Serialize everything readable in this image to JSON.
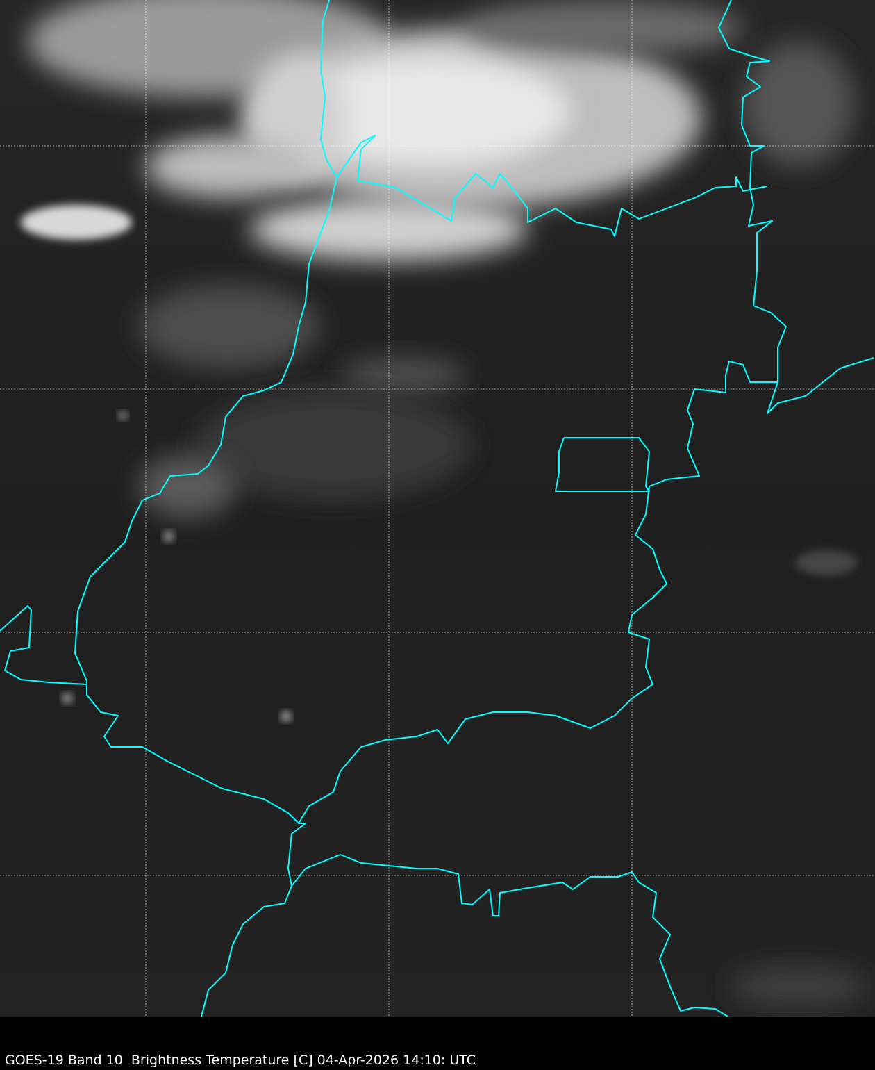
{
  "caption": "GOES-19 Band 10  Brightness Temperature [C] 04-Apr-2026 14:10: UTC",
  "colors": {
    "background": "#1e1e1e",
    "borders": "#00ffff",
    "grid": "#ffffff",
    "clouds": "#ffffff"
  },
  "layers": [
    "satellite-imagery",
    "political-borders",
    "lat-lon-grid"
  ]
}
